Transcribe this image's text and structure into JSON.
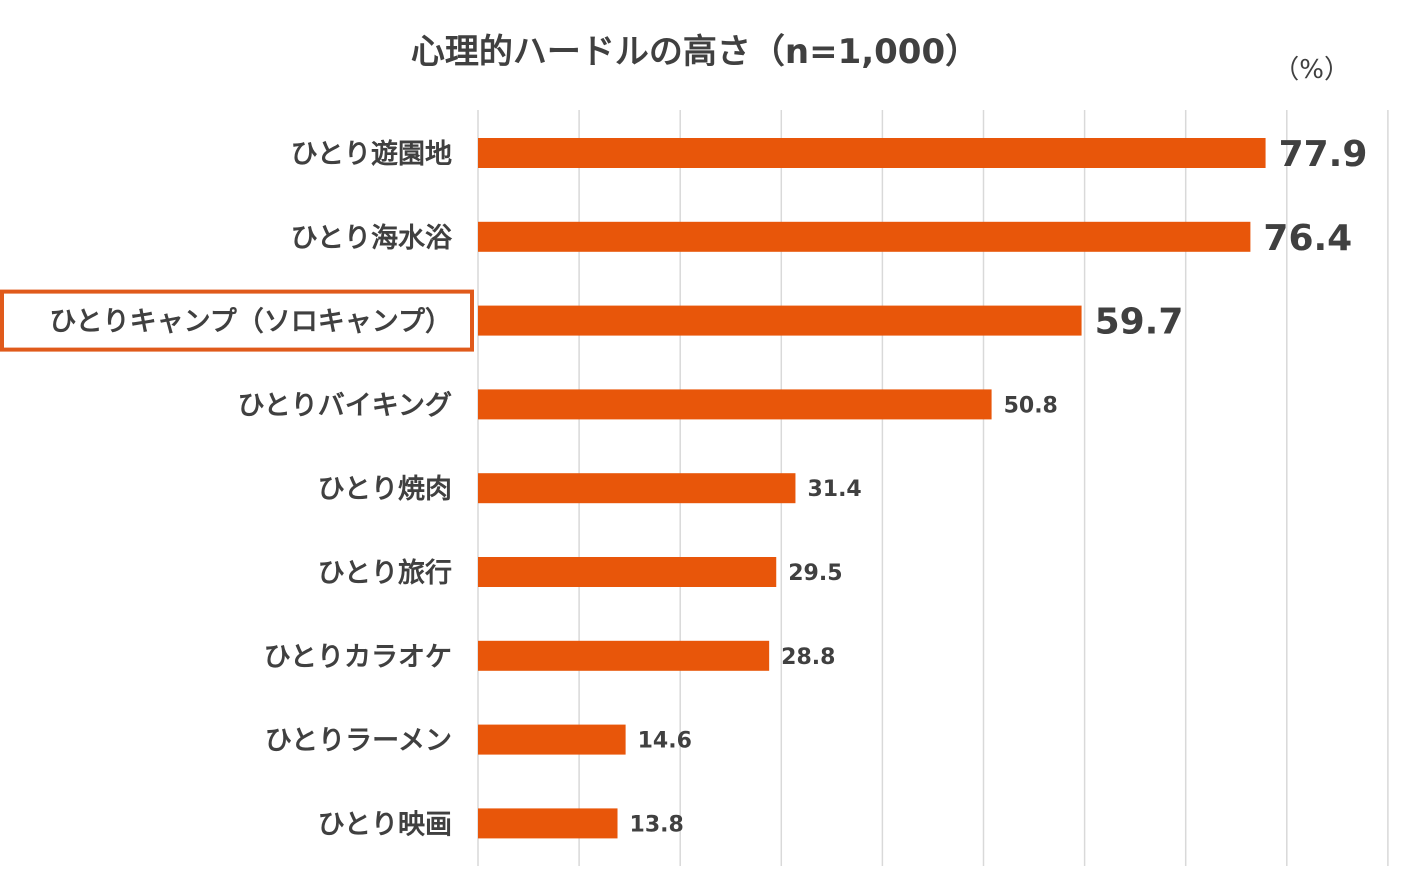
{
  "chart_data": {
    "type": "bar",
    "orientation": "horizontal",
    "title": "心理的ハードルの高さ（n=1,000）",
    "unit": "（%）",
    "xlim": [
      0,
      90
    ],
    "gridlines": true,
    "bar_color": "#E8560A",
    "highlight_color": "#E05A1B",
    "highlighted_category": "ひとりキャンプ（ソロキャンプ）",
    "emphasized_values": [
      "77.9",
      "76.4",
      "59.7"
    ],
    "categories": [
      "ひとり遊園地",
      "ひとり海水浴",
      "ひとりキャンプ（ソロキャンプ）",
      "ひとりバイキング",
      "ひとり焼肉",
      "ひとり旅行",
      "ひとりカラオケ",
      "ひとりラーメン",
      "ひとり映画"
    ],
    "values": [
      77.9,
      76.4,
      59.7,
      50.8,
      31.4,
      29.5,
      28.8,
      14.6,
      13.8
    ],
    "value_labels": [
      "77.9",
      "76.4",
      "59.7",
      "50.8",
      "31.4",
      "29.5",
      "28.8",
      "14.6",
      "13.8"
    ]
  }
}
